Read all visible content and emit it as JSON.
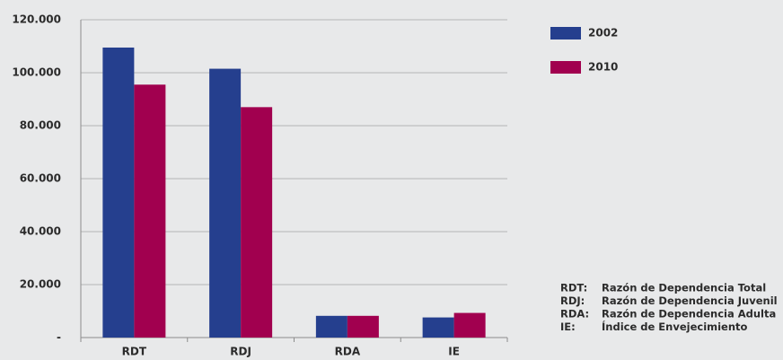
{
  "chart_data": {
    "type": "bar",
    "categories": [
      "RDT",
      "RDJ",
      "RDA",
      "IE"
    ],
    "series": [
      {
        "name": "2002",
        "color": "#253f8e",
        "values": [
          109.5,
          101.5,
          8.2,
          7.6
        ]
      },
      {
        "name": "2010",
        "color": "#a1004f",
        "values": [
          95.5,
          87,
          8.2,
          9.3
        ]
      }
    ],
    "ylim": [
      0,
      120
    ],
    "yticks": [
      {
        "value": 0,
        "label": "-"
      },
      {
        "value": 20,
        "label": "20.000"
      },
      {
        "value": 40,
        "label": "40.000"
      },
      {
        "value": 60,
        "label": "60.000"
      },
      {
        "value": 80,
        "label": "80.000"
      },
      {
        "value": 100,
        "label": "100.000"
      },
      {
        "value": 120,
        "label": "120.000"
      }
    ],
    "grid": true,
    "legend": "right",
    "notes": [
      {
        "abbr": "RDT:",
        "text": "Razón de Dependencia Total"
      },
      {
        "abbr": "RDJ:",
        "text": "Razón de Dependencia Juvenil"
      },
      {
        "abbr": "RDA:",
        "text": "Razón de Dependencia Adulta"
      },
      {
        "abbr": "IE:",
        "text": "Índice de Envejecimiento"
      }
    ]
  }
}
